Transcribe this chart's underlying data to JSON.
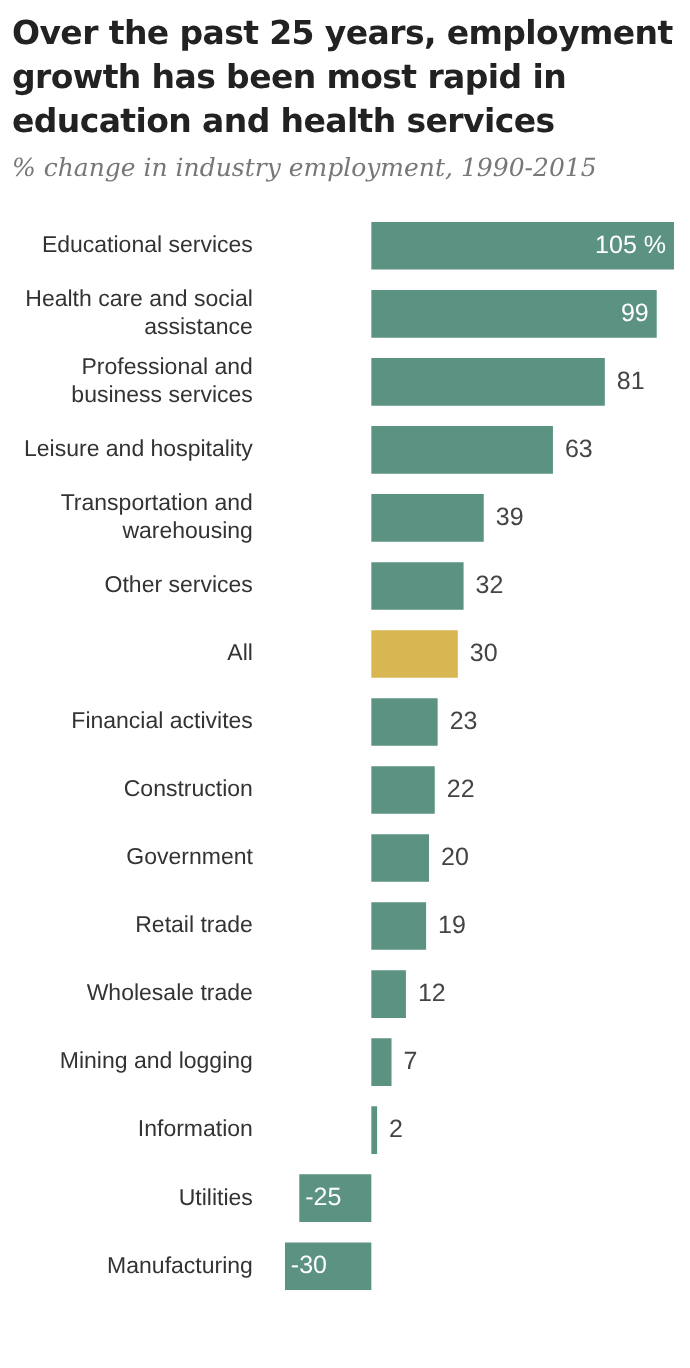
{
  "chart_data": {
    "type": "bar",
    "orientation": "horizontal",
    "title": "Over the past 25 years, employment growth has been most rapid in education and health services",
    "subtitle": "% change in industry employment, 1990-2015",
    "categories": [
      "Educational services",
      "Health care and social assistance",
      "Professional and business services",
      "Leisure and hospitality",
      "Transportation and warehousing",
      "Other services",
      "All",
      "Financial activites",
      "Construction",
      "Government",
      "Retail trade",
      "Wholesale trade",
      "Mining and logging",
      "Information",
      "Utilities",
      "Manufacturing"
    ],
    "values": [
      105,
      99,
      81,
      63,
      39,
      32,
      30,
      23,
      22,
      20,
      19,
      12,
      7,
      2,
      -25,
      -30
    ],
    "value_labels": [
      "105 %",
      "99",
      "81",
      "63",
      "39",
      "32",
      "30",
      "23",
      "22",
      "20",
      "19",
      "12",
      "7",
      "2",
      "-25",
      "-30"
    ],
    "colors": [
      "#5b9282",
      "#5b9282",
      "#5b9282",
      "#5b9282",
      "#5b9282",
      "#5b9282",
      "#d8b651",
      "#5b9282",
      "#5b9282",
      "#5b9282",
      "#5b9282",
      "#5b9282",
      "#5b9282",
      "#5b9282",
      "#5b9282",
      "#5b9282"
    ],
    "xlim": [
      -30,
      105
    ]
  }
}
